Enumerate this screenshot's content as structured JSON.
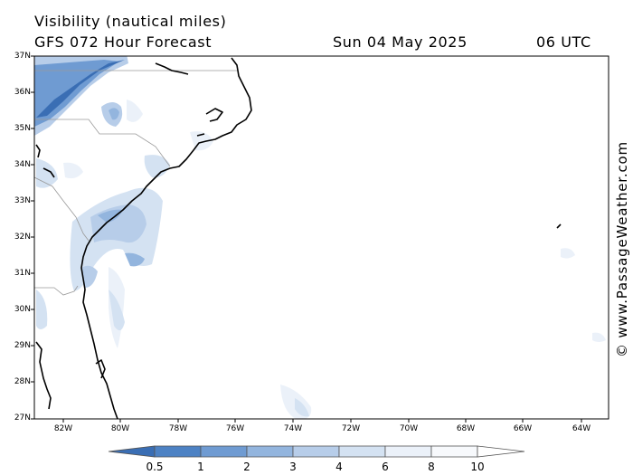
{
  "header": {
    "variable": "Visibility (nautical miles)",
    "model_line": "GFS 072 Hour Forecast",
    "date": "Sun 04 May 2025",
    "time": "06 UTC"
  },
  "credit": "© www.PassageWeather.com",
  "axes": {
    "latitude_labels": [
      "37N",
      "36N",
      "35N",
      "34N",
      "33N",
      "32N",
      "31N",
      "30N",
      "29N",
      "28N",
      "27N"
    ],
    "longitude_labels": [
      "82W",
      "80W",
      "78W",
      "76W",
      "74W",
      "72W",
      "70W",
      "68W",
      "66W",
      "64W"
    ]
  },
  "legend": {
    "labels": [
      "0.5",
      "1",
      "2",
      "3",
      "4",
      "6",
      "8",
      "10"
    ],
    "colors": [
      "#3a6eb4",
      "#4d82c4",
      "#6f9bd2",
      "#93b5de",
      "#b7cde9",
      "#d4e2f2",
      "#ebf1f9",
      "#ffffff"
    ]
  }
}
